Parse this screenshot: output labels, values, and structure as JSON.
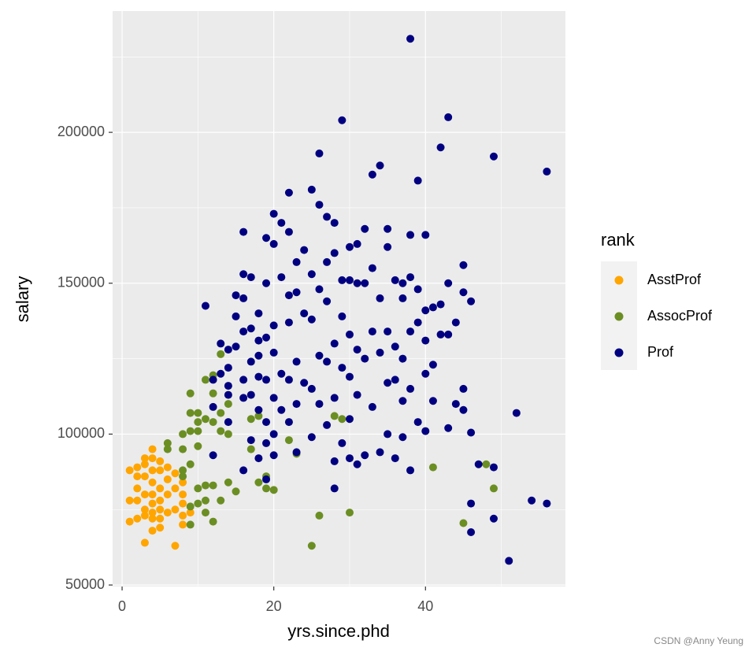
{
  "chart_data": {
    "type": "scatter",
    "x_label": "yrs.since.phd",
    "y_label": "salary",
    "legend_title": "rank",
    "legend_position": "right",
    "xlim": [
      -1.25,
      58.45
    ],
    "ylim": [
      49500,
      240200
    ],
    "xticks": [
      0,
      20,
      40
    ],
    "yticks": [
      50000,
      100000,
      150000,
      200000
    ],
    "xminor": [
      10,
      30,
      50
    ],
    "yminor": [
      75000,
      125000,
      175000,
      225000
    ],
    "grid": true,
    "series": [
      {
        "name": "AsstProf",
        "color": "#FFA500",
        "x": [
          1,
          1,
          1,
          2,
          2,
          2,
          2,
          3,
          3,
          3,
          3,
          3,
          3,
          3,
          4,
          4,
          4,
          4,
          4,
          4,
          4,
          4,
          5,
          5,
          5,
          5,
          5,
          5,
          5,
          6,
          6,
          6,
          7,
          7,
          7,
          7,
          8,
          8,
          8,
          8,
          8,
          9,
          6,
          4,
          2
        ],
        "values": [
          88000,
          78000,
          71000,
          89000,
          86000,
          78000,
          72000,
          92000,
          90000,
          86000,
          80000,
          75000,
          73000,
          64000,
          95000,
          92000,
          88000,
          84000,
          80000,
          77000,
          74000,
          68000,
          91000,
          88000,
          82000,
          78000,
          75000,
          72000,
          69000,
          85000,
          80000,
          74000,
          87000,
          82000,
          75000,
          63000,
          84000,
          80000,
          77000,
          73000,
          70000,
          74000,
          89000,
          72000,
          82000
        ]
      },
      {
        "name": "AssocProf",
        "color": "#6B8E23",
        "x": [
          9,
          9,
          9,
          8,
          8,
          8,
          8,
          6,
          6,
          9,
          9,
          10,
          10,
          10,
          10,
          10,
          11,
          11,
          11,
          11,
          11,
          12,
          12,
          12,
          12,
          12,
          13,
          13,
          13,
          13,
          14,
          14,
          14,
          15,
          17,
          17,
          18,
          18,
          19,
          19,
          20,
          22,
          23,
          25,
          26,
          28,
          29,
          30,
          41,
          45,
          48,
          49,
          9,
          10
        ],
        "values": [
          113500,
          107000,
          101000,
          100000,
          95000,
          88000,
          86000,
          97000,
          95000,
          90000,
          70000,
          107000,
          104000,
          96000,
          82000,
          77000,
          118000,
          105000,
          83000,
          78000,
          74000,
          119500,
          113500,
          104000,
          83000,
          71000,
          126500,
          107000,
          101000,
          78000,
          110000,
          100000,
          84000,
          81000,
          105000,
          95000,
          106000,
          84000,
          86000,
          82000,
          81500,
          98000,
          93500,
          63000,
          73000,
          106000,
          105000,
          74000,
          89000,
          70500,
          90000,
          82000,
          76000,
          101000
        ]
      },
      {
        "name": "Prof",
        "color": "#000080",
        "x": [
          11,
          12,
          12,
          12,
          13,
          13,
          14,
          14,
          14,
          14,
          14,
          15,
          15,
          15,
          16,
          16,
          16,
          16,
          16,
          16,
          16,
          17,
          17,
          17,
          17,
          17,
          18,
          18,
          18,
          18,
          18,
          18,
          19,
          19,
          19,
          19,
          19,
          19,
          19,
          20,
          20,
          20,
          20,
          20,
          20,
          20,
          21,
          21,
          21,
          21,
          22,
          22,
          22,
          22,
          22,
          22,
          23,
          23,
          23,
          23,
          23,
          24,
          24,
          24,
          25,
          25,
          25,
          25,
          25,
          26,
          26,
          26,
          26,
          26,
          27,
          27,
          27,
          27,
          27,
          28,
          28,
          28,
          28,
          28,
          28,
          29,
          29,
          29,
          29,
          29,
          30,
          30,
          30,
          30,
          30,
          30,
          31,
          31,
          31,
          31,
          31,
          32,
          32,
          32,
          32,
          33,
          33,
          33,
          33,
          34,
          34,
          34,
          34,
          35,
          35,
          35,
          35,
          35,
          36,
          36,
          36,
          36,
          37,
          37,
          37,
          37,
          37,
          38,
          38,
          38,
          38,
          38,
          38,
          39,
          39,
          39,
          39,
          40,
          40,
          40,
          40,
          40,
          41,
          41,
          41,
          42,
          42,
          42,
          43,
          43,
          43,
          43,
          44,
          44,
          45,
          45,
          45,
          45,
          46,
          46,
          46,
          46,
          47,
          49,
          49,
          49,
          51,
          52,
          54,
          56,
          56
        ],
        "values": [
          142500,
          118000,
          109000,
          93000,
          130000,
          120000,
          128000,
          122000,
          116000,
          113000,
          104000,
          146000,
          139000,
          129000,
          167000,
          153000,
          145000,
          134000,
          118000,
          112000,
          88000,
          152000,
          135000,
          124000,
          113000,
          98000,
          140000,
          131000,
          126000,
          119000,
          108000,
          92000,
          165000,
          150000,
          132000,
          118000,
          104000,
          97000,
          85000,
          173000,
          163000,
          136000,
          127000,
          112000,
          100000,
          93000,
          170000,
          152000,
          120000,
          108000,
          180000,
          167000,
          146000,
          137000,
          118000,
          104000,
          157000,
          147000,
          124000,
          110000,
          94000,
          161000,
          140000,
          117000,
          181000,
          153000,
          138000,
          115000,
          99000,
          193000,
          176000,
          148000,
          126000,
          110000,
          172000,
          157000,
          144000,
          124000,
          103000,
          170000,
          160000,
          130000,
          112000,
          91000,
          82000,
          204000,
          151000,
          139000,
          122000,
          97000,
          162000,
          151000,
          133000,
          119000,
          105000,
          92000,
          163000,
          150000,
          128000,
          113000,
          90000,
          168000,
          150000,
          125000,
          93000,
          186000,
          155000,
          134000,
          109000,
          189000,
          145000,
          127000,
          94000,
          168000,
          162000,
          134000,
          117000,
          100000,
          151000,
          129000,
          118000,
          92000,
          150000,
          145000,
          125000,
          111000,
          99000,
          231000,
          166000,
          152000,
          134000,
          115000,
          88000,
          184000,
          148000,
          137000,
          104000,
          166000,
          141000,
          131000,
          120000,
          101000,
          142000,
          123000,
          111000,
          195000,
          143000,
          133000,
          205000,
          150000,
          133000,
          102000,
          137000,
          110000,
          156000,
          147000,
          115000,
          108000,
          144000,
          100500,
          77000,
          67500,
          90000,
          192000,
          89000,
          72000,
          58000,
          107000,
          78000,
          187000,
          77000
        ]
      }
    ]
  },
  "watermark": "CSDN @Anny Yeung"
}
